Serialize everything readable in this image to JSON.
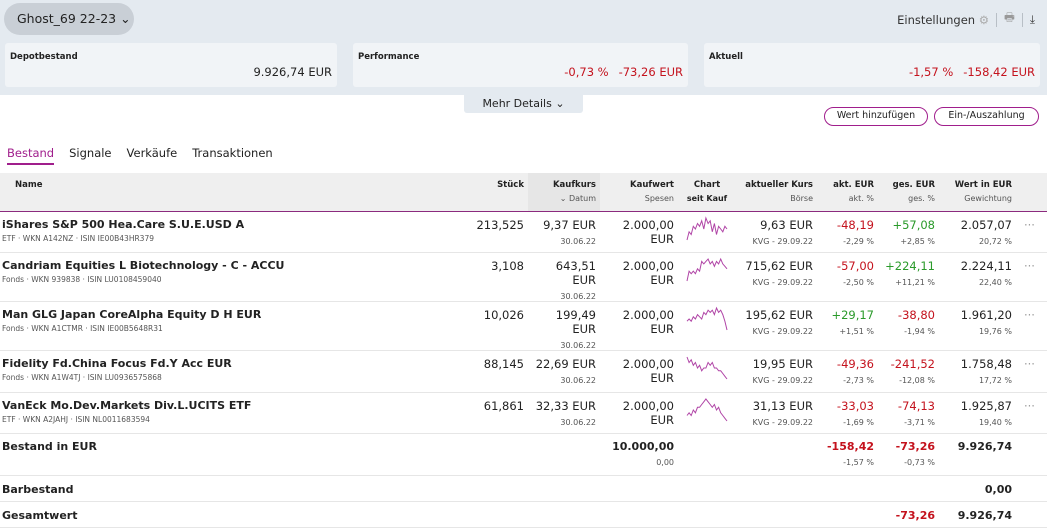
{
  "header": {
    "account": "Ghost_69 22-23",
    "settings": "Einstellungen"
  },
  "cards": [
    {
      "label": "Depotbestand",
      "values": [
        "9.926,74 EUR"
      ]
    },
    {
      "label": "Performance",
      "values": [
        "-0,73 %",
        "-73,26 EUR"
      ]
    },
    {
      "label": "Aktuell",
      "values": [
        "-1,57 %",
        "-158,42 EUR"
      ]
    }
  ],
  "more_details": "Mehr Details",
  "buttons": {
    "add": "Wert hinzufügen",
    "cash": "Ein-/Auszahlung"
  },
  "tabs": [
    "Bestand",
    "Signale",
    "Verkäufe",
    "Transaktionen"
  ],
  "columns": {
    "name": "Name",
    "qty": "Stück",
    "buy_price": "Kaufkurs",
    "buy_date": "Datum",
    "buy_value": "Kaufwert",
    "fees": "Spesen",
    "chart": "Chart",
    "chart_sub": "seit Kauf",
    "price": "aktueller Kurs",
    "exchange": "Börse",
    "day_eur": "akt. EUR",
    "day_pct": "akt. %",
    "tot_eur": "ges. EUR",
    "tot_pct": "ges. %",
    "value": "Wert in EUR",
    "weight": "Gewichtung"
  },
  "rows": [
    {
      "name": "iShares S&P 500 Hea.Care S.U.E.USD A",
      "meta": "ETF · WKN A142NZ · ISIN IE00B43HR379",
      "qty": "213,525",
      "buy_price": "9,37 EUR",
      "buy_date": "30.06.22",
      "buy_value": "2.000,00 EUR",
      "price": "9,63 EUR",
      "exchange": "KVG - 29.09.22",
      "day_eur": "-48,19",
      "day_pct": "-2,29 %",
      "tot_eur": "+57,08",
      "tot_pct": "+2,85 %",
      "value": "2.057,07",
      "weight": "20,72 %",
      "spark": [
        2,
        5,
        4,
        7,
        6,
        8,
        7,
        9,
        6,
        10,
        8,
        9,
        5,
        8,
        4,
        7,
        6,
        5,
        7,
        6
      ]
    },
    {
      "name": "Candriam Equities L Biotechnology - C - ACCU",
      "meta": "Fonds · WKN 939838 · ISIN LU0108459040",
      "qty": "3,108",
      "buy_price": "643,51 EUR",
      "buy_date": "30.06.22",
      "buy_value": "2.000,00 EUR",
      "price": "715,62 EUR",
      "exchange": "KVG - 29.09.22",
      "day_eur": "-57,00",
      "day_pct": "-2,50 %",
      "tot_eur": "+224,11",
      "tot_pct": "+11,21 %",
      "value": "2.224,11",
      "weight": "22,40 %",
      "spark": [
        1,
        5,
        4,
        5,
        4,
        6,
        5,
        9,
        8,
        9,
        10,
        8,
        9,
        7,
        9,
        8,
        10,
        8,
        7,
        6
      ]
    },
    {
      "name": "Man GLG Japan CoreAlpha Equity D H EUR",
      "meta": "Fonds · WKN A1CTMR · ISIN IE00B5648R31",
      "qty": "10,026",
      "buy_price": "199,49 EUR",
      "buy_date": "30.06.22",
      "buy_value": "2.000,00 EUR",
      "price": "195,62 EUR",
      "exchange": "KVG - 29.09.22",
      "day_eur": "+29,17",
      "day_pct": "+1,51 %",
      "tot_eur": "-38,80",
      "tot_pct": "-1,94 %",
      "value": "1.961,20",
      "weight": "19,76 %",
      "spark": [
        5,
        6,
        5,
        7,
        6,
        8,
        7,
        6,
        9,
        8,
        10,
        9,
        10,
        8,
        11,
        9,
        10,
        8,
        5,
        1
      ]
    },
    {
      "name": "Fidelity Fd.China Focus Fd.Y Acc EUR",
      "meta": "Fonds · WKN A1W4TJ · ISIN LU0936575868",
      "qty": "88,145",
      "buy_price": "22,69 EUR",
      "buy_date": "30.06.22",
      "buy_value": "2.000,00 EUR",
      "price": "19,95 EUR",
      "exchange": "KVG - 29.09.22",
      "day_eur": "-49,36",
      "day_pct": "-2,73 %",
      "tot_eur": "-241,52",
      "tot_pct": "-12,08 %",
      "value": "1.758,48",
      "weight": "17,72 %",
      "spark": [
        10,
        8,
        9,
        7,
        8,
        6,
        7,
        5,
        6,
        6,
        8,
        7,
        8,
        6,
        6,
        5,
        5,
        4,
        3,
        2
      ]
    },
    {
      "name": "VanEck Mo.Dev.Markets Div.L.UCITS ETF",
      "meta": "ETF · WKN A2JAHJ · ISIN NL0011683594",
      "qty": "61,861",
      "buy_price": "32,33 EUR",
      "buy_date": "30.06.22",
      "buy_value": "2.000,00 EUR",
      "price": "31,13 EUR",
      "exchange": "KVG - 29.09.22",
      "day_eur": "-33,03",
      "day_pct": "-1,69 %",
      "tot_eur": "-74,13",
      "tot_pct": "-3,71 %",
      "value": "1.925,87",
      "weight": "19,40 %",
      "spark": [
        4,
        5,
        4,
        6,
        5,
        7,
        7,
        8,
        9,
        10,
        9,
        8,
        7,
        8,
        6,
        7,
        5,
        4,
        3,
        2
      ]
    }
  ],
  "totals": {
    "label": "Bestand in EUR",
    "buy_value": "10.000,00",
    "fees": "0,00",
    "day_eur": "-158,42",
    "day_pct": "-1,57 %",
    "tot_eur": "-73,26",
    "tot_pct": "-0,73 %",
    "value": "9.926,74"
  },
  "cash": {
    "label": "Barbestand",
    "value": "0,00"
  },
  "grand": {
    "label": "Gesamtwert",
    "tot_eur": "-73,26",
    "value": "9.926,74"
  },
  "colors": {
    "accent": "#a01e8c",
    "negative": "#c4121d",
    "positive": "#2a9a2a"
  }
}
